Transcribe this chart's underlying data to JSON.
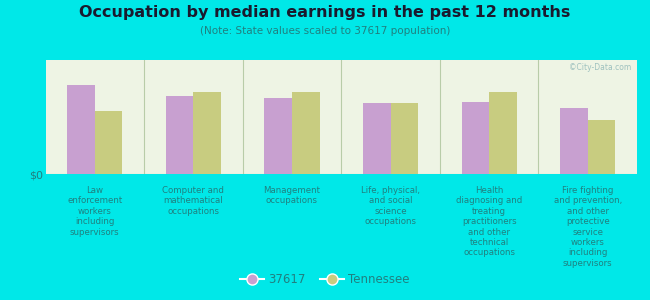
{
  "title": "Occupation by median earnings in the past 12 months",
  "subtitle": "(Note: State values scaled to 37617 population)",
  "background_color": "#00e8e8",
  "plot_bg_color": "#eef4e4",
  "categories": [
    "Law\nenforcement\nworkers\nincluding\nsupervisors",
    "Computer and\nmathematical\noccupations",
    "Management\noccupations",
    "Life, physical,\nand social\nscience\noccupations",
    "Health\ndiagnosing and\ntreating\npractitioners\nand other\ntechnical\noccupations",
    "Fire fighting\nand prevention,\nand other\nprotective\nservice\nworkers\nincluding\nsupervisors"
  ],
  "series1_label": "37617",
  "series2_label": "Tennessee",
  "series1_color": "#c8a0d0",
  "series2_color": "#c8cc80",
  "series1_values": [
    0.78,
    0.68,
    0.67,
    0.62,
    0.63,
    0.58
  ],
  "series2_values": [
    0.55,
    0.72,
    0.72,
    0.62,
    0.72,
    0.47
  ],
  "ylabel": "$0",
  "watermark": "©City-Data.com",
  "title_color": "#1a1a2e",
  "subtitle_color": "#208080",
  "tick_color": "#208080",
  "divider_color": "#b8cca8",
  "bar_width": 0.28
}
